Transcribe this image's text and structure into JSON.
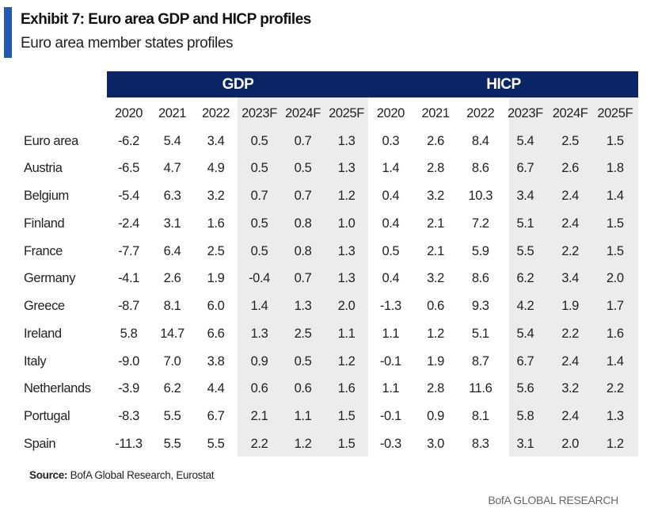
{
  "title": "Exhibit 7: Euro area GDP and HICP profiles",
  "subtitle": "Euro area member states profiles",
  "groups": {
    "gdp": "GDP",
    "hicp": "HICP"
  },
  "years": [
    "2020",
    "2021",
    "2022",
    "2023F",
    "2024F",
    "2025F"
  ],
  "rows": [
    {
      "country": "Euro area",
      "gdp": [
        "-6.2",
        "5.4",
        "3.4",
        "0.5",
        "0.7",
        "1.3"
      ],
      "hicp": [
        "0.3",
        "2.6",
        "8.4",
        "5.4",
        "2.5",
        "1.5"
      ]
    },
    {
      "country": "Austria",
      "gdp": [
        "-6.5",
        "4.7",
        "4.9",
        "0.5",
        "0.5",
        "1.3"
      ],
      "hicp": [
        "1.4",
        "2.8",
        "8.6",
        "6.7",
        "2.6",
        "1.8"
      ]
    },
    {
      "country": "Belgium",
      "gdp": [
        "-5.4",
        "6.3",
        "3.2",
        "0.7",
        "0.7",
        "1.2"
      ],
      "hicp": [
        "0.4",
        "3.2",
        "10.3",
        "3.4",
        "2.4",
        "1.4"
      ]
    },
    {
      "country": "Finland",
      "gdp": [
        "-2.4",
        "3.1",
        "1.6",
        "0.5",
        "0.8",
        "1.0"
      ],
      "hicp": [
        "0.4",
        "2.1",
        "7.2",
        "5.1",
        "2.4",
        "1.5"
      ]
    },
    {
      "country": "France",
      "gdp": [
        "-7.7",
        "6.4",
        "2.5",
        "0.5",
        "0.8",
        "1.3"
      ],
      "hicp": [
        "0.5",
        "2.1",
        "5.9",
        "5.5",
        "2.2",
        "1.5"
      ]
    },
    {
      "country": "Germany",
      "gdp": [
        "-4.1",
        "2.6",
        "1.9",
        "-0.4",
        "0.7",
        "1.3"
      ],
      "hicp": [
        "0.4",
        "3.2",
        "8.6",
        "6.2",
        "3.4",
        "2.0"
      ]
    },
    {
      "country": "Greece",
      "gdp": [
        "-8.7",
        "8.1",
        "6.0",
        "1.4",
        "1.3",
        "2.0"
      ],
      "hicp": [
        "-1.3",
        "0.6",
        "9.3",
        "4.2",
        "1.9",
        "1.7"
      ]
    },
    {
      "country": "Ireland",
      "gdp": [
        "5.8",
        "14.7",
        "6.6",
        "1.3",
        "2.5",
        "1.1"
      ],
      "hicp": [
        "1.1",
        "1.2",
        "5.1",
        "5.4",
        "2.2",
        "1.6"
      ]
    },
    {
      "country": "Italy",
      "gdp": [
        "-9.0",
        "7.0",
        "3.8",
        "0.9",
        "0.5",
        "1.2"
      ],
      "hicp": [
        "-0.1",
        "1.9",
        "8.7",
        "6.7",
        "2.4",
        "1.4"
      ]
    },
    {
      "country": "Netherlands",
      "gdp": [
        "-3.9",
        "6.2",
        "4.4",
        "0.6",
        "0.6",
        "1.6"
      ],
      "hicp": [
        "1.1",
        "2.8",
        "11.6",
        "5.6",
        "3.2",
        "2.2"
      ]
    },
    {
      "country": "Portugal",
      "gdp": [
        "-8.3",
        "5.5",
        "6.7",
        "2.1",
        "1.1",
        "1.5"
      ],
      "hicp": [
        "-0.1",
        "0.9",
        "8.1",
        "5.8",
        "2.4",
        "1.3"
      ]
    },
    {
      "country": "Spain",
      "gdp": [
        "-11.3",
        "5.5",
        "5.5",
        "2.2",
        "1.2",
        "1.5"
      ],
      "hicp": [
        "-0.3",
        "3.0",
        "8.3",
        "3.1",
        "2.0",
        "1.2"
      ]
    }
  ],
  "source_label": "Source:",
  "source_text": " BofA Global Research, Eurostat",
  "footer": "BofA GLOBAL RESEARCH",
  "colors": {
    "header": "#0a2466",
    "accent": "#1f5ab4",
    "shade": "#ececec"
  }
}
